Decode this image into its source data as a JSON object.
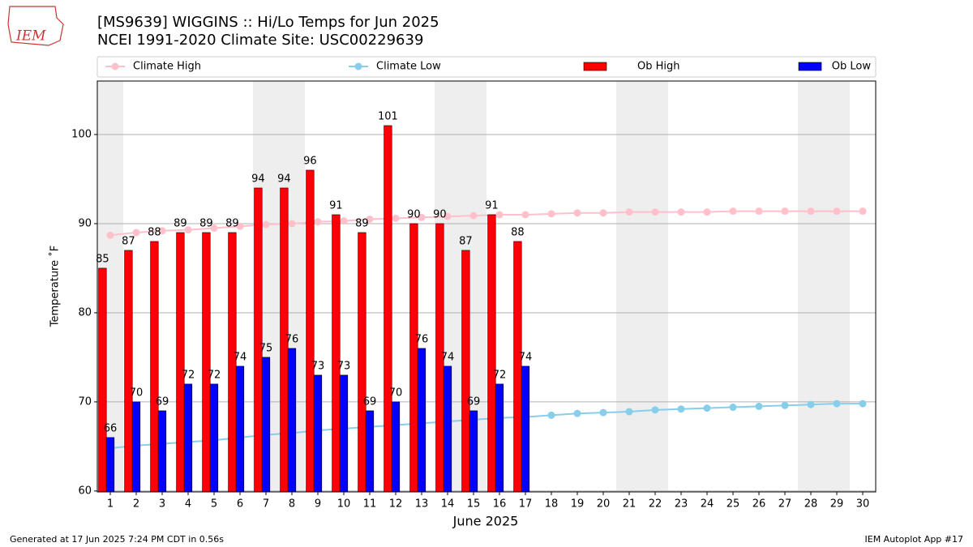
{
  "logo_text": "IEM",
  "footer": {
    "left": "Generated at 17 Jun 2025 7:24 PM CDT in 0.56s",
    "right": "IEM Autoplot App #17"
  },
  "chart_data": {
    "type": "bar-line",
    "title": "[MS9639] WIGGINS :: Hi/Lo Temps for Jun 2025",
    "subtitle": "NCEI 1991-2020 Climate Site: USC00229639",
    "x_label": "June 2025",
    "y_label": "Temperature ˚F",
    "x": [
      1,
      2,
      3,
      4,
      5,
      6,
      7,
      8,
      9,
      10,
      11,
      12,
      13,
      14,
      15,
      16,
      17,
      18,
      19,
      20,
      21,
      22,
      23,
      24,
      25,
      26,
      27,
      28,
      29,
      30
    ],
    "xlim": [
      0.5,
      30.5
    ],
    "xticks": [
      1,
      2,
      3,
      4,
      5,
      6,
      7,
      8,
      9,
      10,
      11,
      12,
      13,
      14,
      15,
      16,
      17,
      18,
      19,
      20,
      21,
      22,
      23,
      24,
      25,
      26,
      27,
      28,
      29,
      30
    ],
    "ylim": [
      59.9,
      106
    ],
    "yticks": [
      60,
      70,
      80,
      90,
      100
    ],
    "grid": true,
    "shaded_days": [
      1,
      7,
      8,
      14,
      15,
      21,
      22,
      28,
      29
    ],
    "shade_color": "#eeeeee",
    "series": [
      {
        "name": "Climate High",
        "kind": "line",
        "color": "pink",
        "values": [
          88.7,
          89.0,
          89.2,
          89.3,
          89.5,
          89.7,
          89.9,
          90.0,
          90.2,
          90.3,
          90.5,
          90.6,
          90.7,
          90.8,
          90.9,
          91.0,
          91.0,
          91.1,
          91.2,
          91.2,
          91.3,
          91.3,
          91.3,
          91.3,
          91.4,
          91.4,
          91.4,
          91.4,
          91.4,
          91.4
        ]
      },
      {
        "name": "Climate Low",
        "kind": "line",
        "color": "skyblue",
        "values": [
          64.8,
          65.1,
          65.3,
          65.5,
          65.7,
          66.0,
          66.3,
          66.5,
          66.8,
          67.0,
          67.2,
          67.4,
          67.6,
          67.8,
          68.0,
          68.2,
          68.3,
          68.5,
          68.7,
          68.8,
          68.9,
          69.1,
          69.2,
          69.3,
          69.4,
          69.5,
          69.6,
          69.7,
          69.8,
          69.8
        ]
      },
      {
        "name": "Ob High",
        "kind": "bar",
        "color": "#ff0000",
        "values": [
          85,
          87,
          88,
          89,
          89,
          89,
          94,
          94,
          96,
          91,
          89,
          101,
          90,
          90,
          87,
          91,
          88,
          null,
          null,
          null,
          null,
          null,
          null,
          null,
          null,
          null,
          null,
          null,
          null,
          null
        ]
      },
      {
        "name": "Ob Low",
        "kind": "bar",
        "color": "#0000ff",
        "values": [
          66,
          70,
          69,
          72,
          72,
          74,
          75,
          76,
          73,
          73,
          69,
          70,
          76,
          74,
          69,
          72,
          74,
          null,
          null,
          null,
          null,
          null,
          null,
          null,
          null,
          null,
          null,
          null,
          null,
          null
        ]
      }
    ]
  }
}
